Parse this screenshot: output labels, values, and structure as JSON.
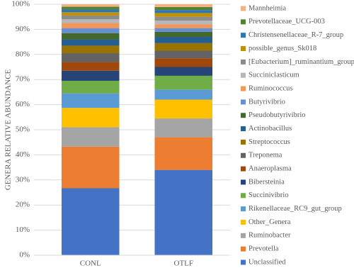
{
  "chart_data": {
    "type": "stacked_bar",
    "y_label": "GENERA RELATIVE ABUNDANCE",
    "categories": [
      "CONL",
      "OTLF"
    ],
    "ylim": [
      0,
      100
    ],
    "yticks": [
      {
        "value": 0,
        "label": "0%"
      },
      {
        "value": 10,
        "label": "10%"
      },
      {
        "value": 20,
        "label": "20%"
      },
      {
        "value": 30,
        "label": "30%"
      },
      {
        "value": 40,
        "label": "40%"
      },
      {
        "value": 50,
        "label": "50%"
      },
      {
        "value": 60,
        "label": "60%"
      },
      {
        "value": 70,
        "label": "70%"
      },
      {
        "value": 80,
        "label": "80%"
      },
      {
        "value": 90,
        "label": "90%"
      },
      {
        "value": 100,
        "label": "100%"
      }
    ],
    "grid": true,
    "legend": "right",
    "series": [
      {
        "name": "Unclassified",
        "color": "#4472c4",
        "values": [
          26.7,
          34
        ]
      },
      {
        "name": "Prevotella",
        "color": "#ed7d31",
        "values": [
          16.6,
          13
        ]
      },
      {
        "name": "Ruminobacter",
        "color": "#a5a5a5",
        "values": [
          7.7,
          7.5
        ]
      },
      {
        "name": "Other_Genera",
        "color": "#ffc000",
        "values": [
          7.7,
          7.5
        ]
      },
      {
        "name": "Rikenellaceae_RC9_gut_group",
        "color": "#5b9bd5",
        "values": [
          5.8,
          4
        ]
      },
      {
        "name": "Succinivibrio",
        "color": "#70ad47",
        "values": [
          5,
          5.5
        ]
      },
      {
        "name": "Bibersteinia",
        "color": "#264478",
        "values": [
          4,
          3.5
        ]
      },
      {
        "name": "Anaeroplasma",
        "color": "#9e480e",
        "values": [
          3.5,
          3.5
        ]
      },
      {
        "name": "Treponema",
        "color": "#636363",
        "values": [
          3.5,
          3
        ]
      },
      {
        "name": "Streptococcus",
        "color": "#997300",
        "values": [
          3,
          3
        ]
      },
      {
        "name": "Actinobacillus",
        "color": "#255e91",
        "values": [
          2.5,
          2.5
        ]
      },
      {
        "name": "Pseudobutyrivibrio",
        "color": "#43682b",
        "values": [
          2.5,
          2
        ]
      },
      {
        "name": "Butyrivibrio",
        "color": "#698ed0",
        "values": [
          2,
          1.5
        ]
      },
      {
        "name": "Ruminococcus",
        "color": "#f1975a",
        "values": [
          2,
          1.5
        ]
      },
      {
        "name": "Succiniclasticum",
        "color": "#b7b7b7",
        "values": [
          1.5,
          1.5
        ]
      },
      {
        "name": "[Eubacterium]_ruminantium_group",
        "color": "#8c8c8c",
        "values": [
          1.5,
          1.5
        ]
      },
      {
        "name": "possible_genus_Sk018",
        "color": "#bf9000",
        "values": [
          1.3,
          1.5
        ]
      },
      {
        "name": "Christensenellaceae_R-7_group",
        "color": "#2e75b6",
        "values": [
          1.1,
          1.2
        ]
      },
      {
        "name": "Prevotellaceae_UCG-003",
        "color": "#548235",
        "values": [
          1.1,
          1.2
        ]
      },
      {
        "name": "Mannheimia",
        "color": "#f4b183",
        "values": [
          1,
          1.1
        ]
      }
    ]
  }
}
